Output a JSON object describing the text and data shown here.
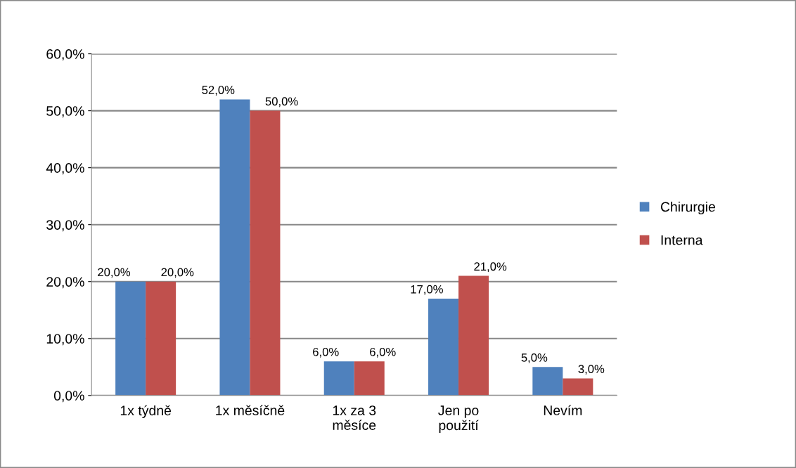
{
  "chart_data": {
    "type": "bar",
    "categories": [
      "1x týdně",
      "1x měsíčně",
      "1x za 3\nměsíce",
      "Jen po\npoužití",
      "Nevím"
    ],
    "series": [
      {
        "name": "Chirurgie",
        "color": "#4f81bd",
        "values": [
          20,
          52,
          6,
          17,
          5
        ],
        "value_labels": [
          "20,0%",
          "52,0%",
          "6,0%",
          "17,0%",
          "5,0%"
        ]
      },
      {
        "name": "Interna",
        "color": "#c0504d",
        "values": [
          20,
          50,
          6,
          21,
          3
        ],
        "value_labels": [
          "20,0%",
          "50,0%",
          "6,0%",
          "21,0%",
          "3,0%"
        ]
      }
    ],
    "ylim": [
      0,
      60
    ],
    "yticks": [
      {
        "value": 0,
        "label": "0,0%"
      },
      {
        "value": 10,
        "label": "10,0%"
      },
      {
        "value": 20,
        "label": "20,0%"
      },
      {
        "value": 30,
        "label": "30,0%"
      },
      {
        "value": 40,
        "label": "40,0%"
      },
      {
        "value": 50,
        "label": "50,0%"
      },
      {
        "value": 60,
        "label": "60,0%"
      }
    ],
    "grid": "y",
    "legend": "right"
  }
}
